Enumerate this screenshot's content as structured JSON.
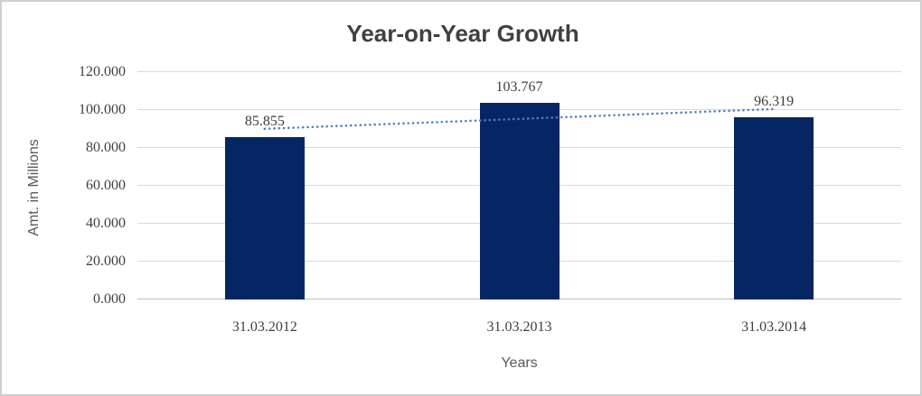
{
  "chart_data": {
    "type": "bar",
    "title": "Year-on-Year Growth",
    "xlabel": "Years",
    "ylabel": "Amt. in Millions",
    "categories": [
      "31.03.2012",
      "31.03.2013",
      "31.03.2014"
    ],
    "values": [
      85.855,
      103.767,
      96.319
    ],
    "value_labels": [
      "85.855",
      "103.767",
      "96.319"
    ],
    "ylim": [
      0,
      120
    ],
    "ytick_step": 20,
    "ytick_labels": [
      "0.000",
      "20.000",
      "40.000",
      "60.000",
      "80.000",
      "100.000",
      "120.000"
    ],
    "grid": true,
    "legend": "none",
    "trendline": {
      "type": "linear",
      "style": "dotted"
    },
    "colors": {
      "bar": "#052663",
      "trendline": "#4F81BD",
      "gridline": "#D9D9D9",
      "axis_line": "#BFBFBF",
      "title_text": "#404040",
      "tick_text": "#3F3F3F",
      "axis_title_text": "#595959",
      "background": "#FFFFFF",
      "frame_border": "#CFCFCF"
    }
  }
}
